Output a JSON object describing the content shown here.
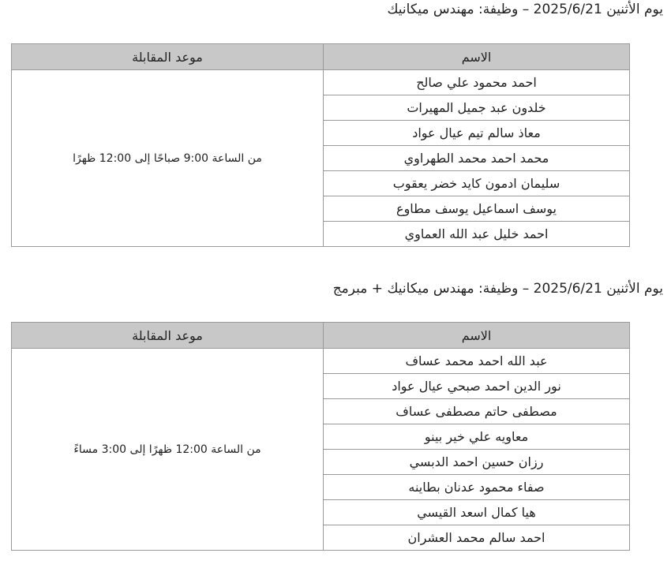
{
  "sections": [
    {
      "heading": "يوم الأثنين 2025/6/21 – وظيفة: مهندس ميكانيك",
      "columns": {
        "name": "الاسم",
        "time": "موعد المقابلة"
      },
      "time": "من الساعة 9:00 صباحًا إلى 12:00 ظهرًا",
      "names": [
        "احمد محمود علي صالح",
        "خلدون عبد جميل المهيرات",
        "معاذ سالم تيم عيال عواد",
        "محمد احمد محمد الطهراوي",
        "سليمان ادمون كايد خضر يعقوب",
        "يوسف اسماعيل يوسف مطاوع",
        "احمد خليل عبد الله العماوي"
      ]
    },
    {
      "heading": "يوم الأثنين 2025/6/21 – وظيفة: مهندس ميكانيك + مبرمج",
      "columns": {
        "name": "الاسم",
        "time": "موعد المقابلة"
      },
      "time": "من الساعة 12:00 ظهرًا إلى 3:00 مساءً",
      "names": [
        "عبد الله احمد محمد عساف",
        "نور الدين احمد صبحي عيال عواد",
        "مصطفى حاتم مصطفى عساف",
        "معاويه علي خير بينو",
        "رزان حسين احمد الدبسي",
        "صفاء محمود عدنان بطاينه",
        "هيا كمال اسعد القيسي",
        "احمد سالم محمد العشران"
      ]
    }
  ]
}
